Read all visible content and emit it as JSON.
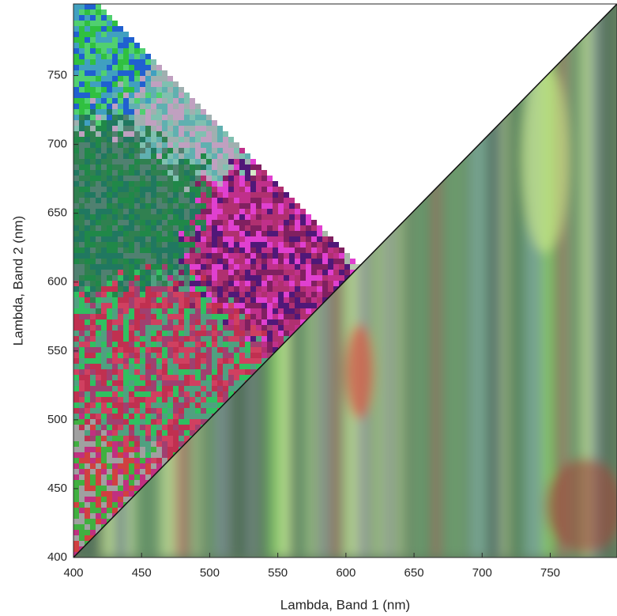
{
  "chart_data": {
    "type": "image",
    "x_label": "Lambda, Band 1 (nm)",
    "y_label": "Lambda, Band 2 (nm)",
    "xlim": [
      400,
      799
    ],
    "ylim": [
      400,
      802
    ],
    "xticks": [
      400,
      450,
      500,
      550,
      600,
      650,
      700,
      750
    ],
    "yticks": [
      400,
      450,
      500,
      550,
      600,
      650,
      700,
      750
    ]
  }
}
